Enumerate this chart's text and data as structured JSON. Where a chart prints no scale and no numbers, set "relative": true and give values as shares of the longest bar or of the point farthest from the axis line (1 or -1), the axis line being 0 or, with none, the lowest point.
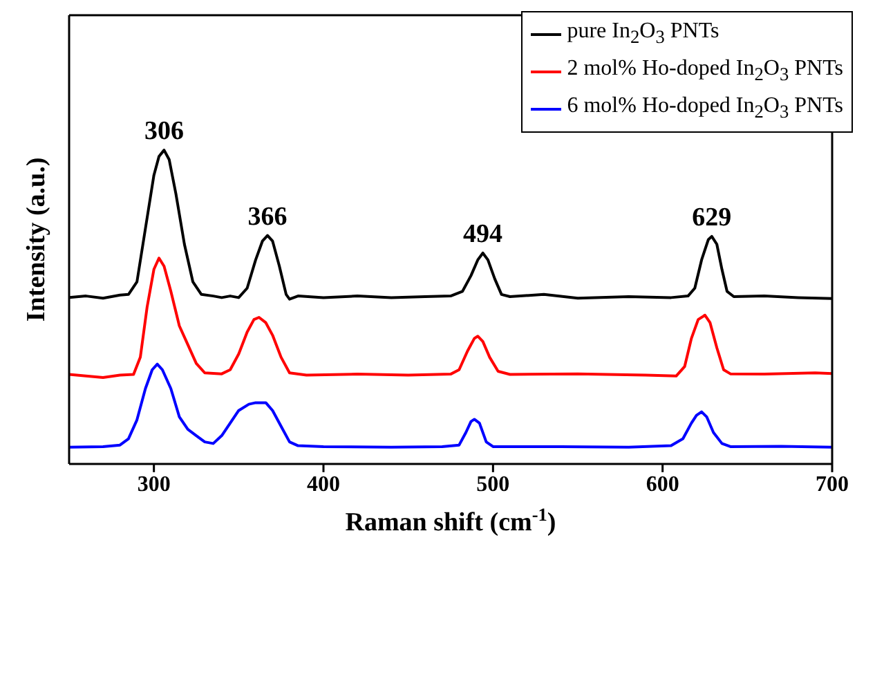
{
  "chart_data": {
    "type": "line",
    "xlabel": "Raman shift (cm$^{-1}$)",
    "ylabel": "Intensity (a.u.)",
    "relative": true,
    "xlim": [
      250,
      700
    ],
    "xticks": [
      300,
      400,
      500,
      600,
      700
    ],
    "grid": false,
    "legend": "top right",
    "marker": "none",
    "line_style": "solid",
    "annotations": [
      {
        "text": "306",
        "x": 306,
        "y": 1.0
      },
      {
        "text": "366",
        "x": 367,
        "y": 0.728
      },
      {
        "text": "494",
        "x": 494,
        "y": 0.672
      },
      {
        "text": "629",
        "x": 629,
        "y": 0.725
      }
    ],
    "series": [
      {
        "name": "pure In$_{2}$O$_{3}$ PNTs",
        "color": "#000000",
        "x": [
          250,
          260,
          270,
          280,
          285,
          290,
          295,
          300,
          303,
          306,
          309,
          313,
          318,
          323,
          328,
          335,
          340,
          345,
          350,
          355,
          360,
          364,
          367,
          370,
          374,
          378,
          380,
          385,
          400,
          420,
          440,
          460,
          475,
          482,
          487,
          491,
          494,
          497,
          501,
          505,
          510,
          530,
          550,
          580,
          605,
          615,
          619,
          623,
          627,
          629,
          632,
          635,
          638,
          642,
          660,
          680,
          700
        ],
        "values": [
          0.53,
          0.535,
          0.528,
          0.538,
          0.54,
          0.58,
          0.75,
          0.92,
          0.98,
          1.0,
          0.97,
          0.86,
          0.7,
          0.58,
          0.54,
          0.535,
          0.53,
          0.535,
          0.53,
          0.56,
          0.65,
          0.71,
          0.728,
          0.71,
          0.63,
          0.54,
          0.525,
          0.535,
          0.53,
          0.535,
          0.53,
          0.533,
          0.535,
          0.55,
          0.6,
          0.65,
          0.672,
          0.65,
          0.59,
          0.54,
          0.533,
          0.54,
          0.528,
          0.533,
          0.53,
          0.535,
          0.56,
          0.65,
          0.715,
          0.725,
          0.7,
          0.62,
          0.55,
          0.533,
          0.535,
          0.53,
          0.527
        ]
      },
      {
        "name": "2 mol% Ho-doped In$_{2}$O$_{3}$ PNTs",
        "color": "#ff0000",
        "x": [
          250,
          260,
          270,
          280,
          288,
          292,
          296,
          300,
          303,
          306,
          310,
          315,
          320,
          325,
          330,
          340,
          345,
          350,
          355,
          359,
          362,
          366,
          370,
          375,
          380,
          390,
          420,
          450,
          475,
          480,
          485,
          489,
          491,
          494,
          498,
          503,
          510,
          550,
          590,
          608,
          613,
          617,
          621,
          625,
          628,
          632,
          636,
          640,
          660,
          690,
          700
        ],
        "values": [
          0.285,
          0.28,
          0.275,
          0.283,
          0.285,
          0.34,
          0.5,
          0.62,
          0.656,
          0.63,
          0.55,
          0.44,
          0.38,
          0.32,
          0.29,
          0.287,
          0.3,
          0.35,
          0.42,
          0.46,
          0.467,
          0.45,
          0.41,
          0.34,
          0.29,
          0.283,
          0.286,
          0.283,
          0.286,
          0.3,
          0.36,
          0.4,
          0.407,
          0.39,
          0.34,
          0.295,
          0.285,
          0.287,
          0.283,
          0.28,
          0.31,
          0.4,
          0.46,
          0.474,
          0.45,
          0.37,
          0.3,
          0.287,
          0.286,
          0.29,
          0.288
        ]
      },
      {
        "name": "6 mol% Ho-doped In$_{2}$O$_{3}$ PNTs",
        "color": "#0000ff",
        "x": [
          250,
          270,
          280,
          285,
          290,
          295,
          299,
          302,
          305,
          310,
          315,
          320,
          325,
          330,
          335,
          340,
          345,
          350,
          356,
          360,
          366,
          370,
          375,
          380,
          385,
          400,
          440,
          470,
          480,
          484,
          487,
          489,
          492,
          496,
          500,
          540,
          580,
          605,
          612,
          617,
          620,
          623,
          626,
          630,
          635,
          640,
          670,
          700
        ],
        "values": [
          0.053,
          0.055,
          0.06,
          0.08,
          0.14,
          0.24,
          0.3,
          0.318,
          0.3,
          0.24,
          0.15,
          0.11,
          0.09,
          0.07,
          0.065,
          0.09,
          0.13,
          0.17,
          0.19,
          0.195,
          0.195,
          0.17,
          0.12,
          0.07,
          0.058,
          0.055,
          0.053,
          0.055,
          0.06,
          0.1,
          0.135,
          0.142,
          0.13,
          0.07,
          0.055,
          0.055,
          0.053,
          0.058,
          0.08,
          0.13,
          0.155,
          0.166,
          0.15,
          0.1,
          0.065,
          0.055,
          0.056,
          0.053
        ]
      }
    ]
  }
}
